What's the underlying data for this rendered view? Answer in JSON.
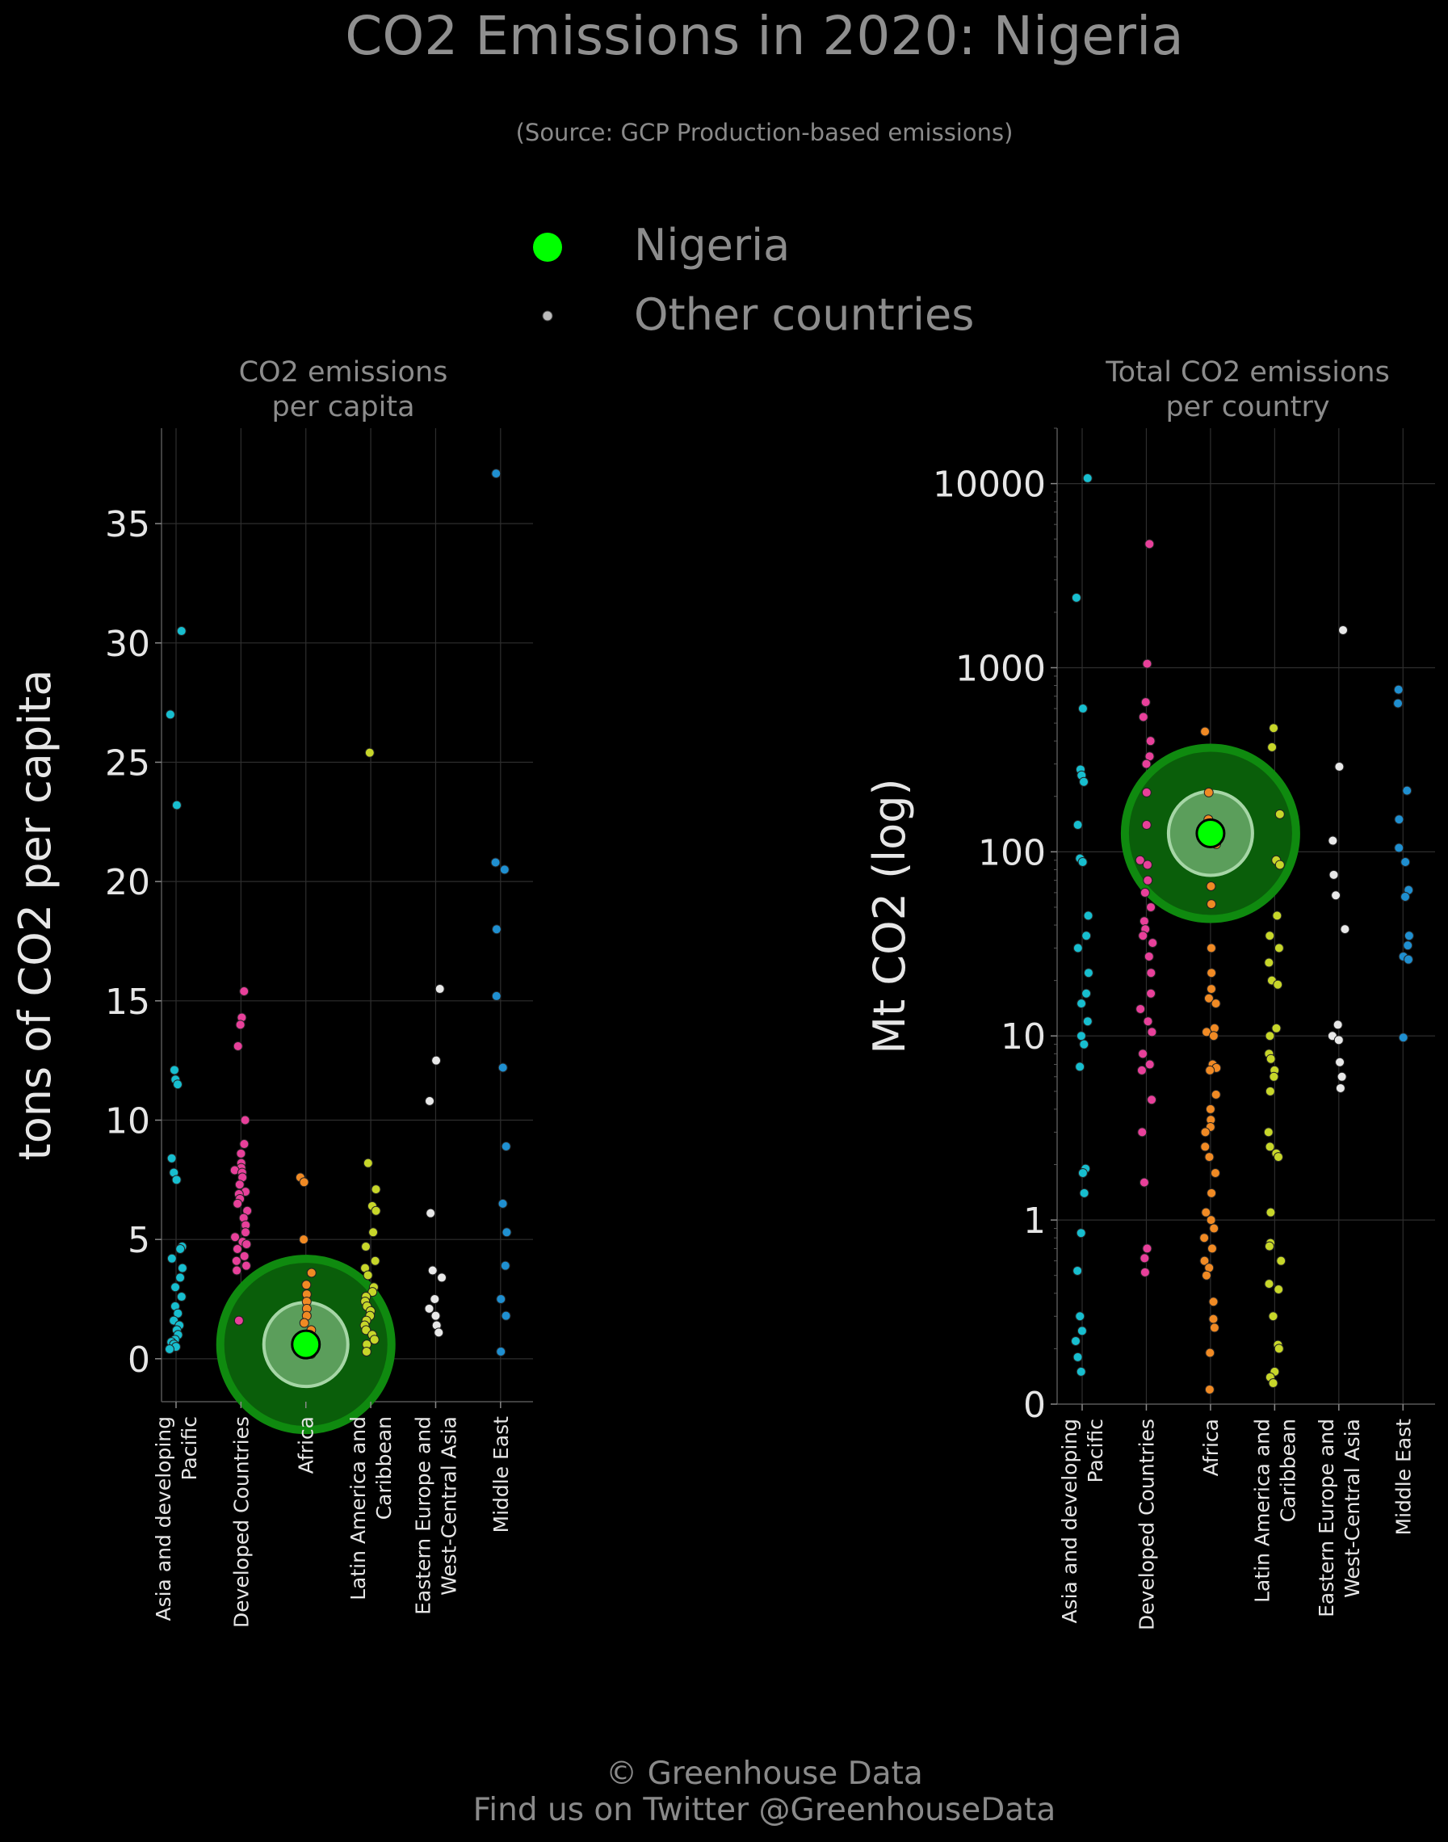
{
  "title": "CO2 Emissions in 2020: Nigeria",
  "subtitle": "(Source: GCP Production-based emissions)",
  "legend": {
    "highlight_label": "Nigeria",
    "other_label": "Other countries",
    "highlight_color": "#00ff00",
    "other_color": "#bbbbbb"
  },
  "footer": {
    "line1": "© Greenhouse Data",
    "line2": "Find us on Twitter @GreenhouseData"
  },
  "chart_data": [
    {
      "type": "scatter",
      "subtype": "strip",
      "title": "CO2 emissions per capita",
      "ylabel": "tons of CO2 per capita",
      "yscale": "linear",
      "ylim": [
        -1.8,
        39
      ],
      "yticks": [
        0,
        5,
        10,
        15,
        20,
        25,
        30,
        35
      ],
      "ytick_labels": [
        "0",
        "5",
        "10",
        "15",
        "20",
        "25",
        "30",
        "35"
      ],
      "grid": true,
      "categories": [
        {
          "label": "Asia and developing Pacific",
          "label_lines": [
            "Asia and developing",
            "Pacific"
          ],
          "color": "#17becf"
        },
        {
          "label": "Developed Countries",
          "label_lines": [
            "Developed Countries"
          ],
          "color": "#e7409a"
        },
        {
          "label": "Africa",
          "label_lines": [
            "Africa"
          ],
          "color": "#f08a24"
        },
        {
          "label": "Latin America and Caribbean",
          "label_lines": [
            "Latin America and",
            "Caribbean"
          ],
          "color": "#c7d62a"
        },
        {
          "label": "Eastern Europe and West-Central Asia",
          "label_lines": [
            "Eastern Europe and",
            "West-Central Asia"
          ],
          "color": "#e8e8e8"
        },
        {
          "label": "Middle East",
          "label_lines": [
            "Middle East"
          ],
          "color": "#1f8fd0"
        }
      ],
      "values": [
        [
          30.5,
          27.0,
          23.2,
          12.1,
          11.7,
          11.5,
          8.4,
          7.8,
          7.5,
          4.7,
          4.6,
          4.2,
          3.8,
          3.4,
          3.0,
          2.6,
          2.2,
          1.9,
          1.6,
          1.4,
          1.2,
          1.0,
          0.8,
          0.7,
          0.6,
          0.5,
          0.4
        ],
        [
          15.4,
          14.3,
          14.0,
          13.1,
          10.0,
          9.0,
          8.6,
          8.2,
          8.0,
          7.9,
          7.8,
          7.6,
          7.3,
          7.0,
          6.9,
          6.7,
          6.5,
          6.2,
          5.9,
          5.6,
          5.3,
          5.1,
          4.9,
          4.8,
          4.6,
          4.3,
          4.1,
          3.9,
          3.7,
          1.6
        ],
        [
          7.6,
          7.4,
          5.0,
          3.6,
          3.1,
          2.7,
          2.4,
          2.1,
          1.8,
          1.5,
          1.2,
          1.0,
          0.8,
          0.6,
          0.5,
          0.4,
          0.3,
          0.2,
          0.2
        ],
        [
          25.4,
          8.2,
          7.1,
          6.4,
          6.2,
          5.3,
          4.7,
          4.1,
          3.8,
          3.5,
          3.0,
          2.8,
          2.6,
          2.4,
          2.2,
          2.0,
          1.8,
          1.6,
          1.4,
          1.2,
          1.0,
          0.8,
          0.6,
          0.3
        ],
        [
          15.5,
          12.5,
          10.8,
          6.1,
          3.7,
          3.4,
          2.5,
          2.1,
          1.8,
          1.4,
          1.1
        ],
        [
          37.1,
          20.8,
          20.5,
          18.0,
          15.2,
          12.2,
          8.9,
          6.5,
          5.3,
          3.9,
          2.5,
          1.8,
          0.3
        ]
      ],
      "highlight": {
        "name": "Nigeria",
        "category": "Africa",
        "value": 0.6
      }
    },
    {
      "type": "scatter",
      "subtype": "strip",
      "title": "Total CO2 emissions per country",
      "ylabel": "Mt CO2 (log)",
      "yscale": "log",
      "ylim": [
        0.1,
        20000
      ],
      "yticks": [
        0.1,
        1,
        10,
        100,
        1000,
        10000
      ],
      "ytick_labels": [
        "0",
        "1",
        "10",
        "100",
        "1000",
        "10000"
      ],
      "grid": true,
      "categories": [
        {
          "label": "Asia and developing Pacific",
          "label_lines": [
            "Asia and developing",
            "Pacific"
          ],
          "color": "#17becf"
        },
        {
          "label": "Developed Countries",
          "label_lines": [
            "Developed Countries"
          ],
          "color": "#e7409a"
        },
        {
          "label": "Africa",
          "label_lines": [
            "Africa"
          ],
          "color": "#f08a24"
        },
        {
          "label": "Latin America and Caribbean",
          "label_lines": [
            "Latin America and",
            "Caribbean"
          ],
          "color": "#c7d62a"
        },
        {
          "label": "Eastern Europe and West-Central Asia",
          "label_lines": [
            "Eastern Europe and",
            "West-Central Asia"
          ],
          "color": "#e8e8e8"
        },
        {
          "label": "Middle East",
          "label_lines": [
            "Middle East"
          ],
          "color": "#1f8fd0"
        }
      ],
      "values": [
        [
          10700,
          2400,
          600,
          280,
          260,
          240,
          140,
          92,
          88,
          45,
          35,
          30,
          22,
          17,
          15,
          12,
          10,
          9,
          6.8,
          1.9,
          1.8,
          1.4,
          0.85,
          0.53,
          0.3,
          0.25,
          0.22,
          0.18,
          0.15
        ],
        [
          4700,
          1050,
          650,
          540,
          400,
          330,
          300,
          210,
          140,
          90,
          85,
          70,
          60,
          50,
          42,
          38,
          35,
          32,
          27,
          22,
          17,
          14,
          12,
          10.5,
          8,
          7,
          6.5,
          4.5,
          3,
          1.6,
          0.7,
          0.62,
          0.52
        ],
        [
          450,
          210,
          150,
          110,
          65,
          52,
          30,
          22,
          18,
          16,
          15,
          11,
          10.5,
          10,
          7,
          6.7,
          6.5,
          4.8,
          4,
          3.5,
          3.2,
          3,
          2.5,
          2.2,
          1.8,
          1.4,
          1.1,
          1,
          0.9,
          0.8,
          0.7,
          0.6,
          0.55,
          0.5,
          0.36,
          0.29,
          0.26,
          0.19,
          0.12
        ],
        [
          470,
          370,
          160,
          90,
          85,
          45,
          35,
          30,
          25,
          20,
          19,
          11,
          10,
          8,
          7.5,
          6.5,
          6,
          5,
          3,
          2.5,
          2.3,
          2.2,
          1.1,
          0.75,
          0.72,
          0.6,
          0.45,
          0.42,
          0.3,
          0.21,
          0.2,
          0.15,
          0.14,
          0.13
        ],
        [
          1600,
          290,
          115,
          75,
          58,
          38,
          11.5,
          10,
          9.5,
          7.2,
          6,
          5.2
        ],
        [
          760,
          640,
          215,
          150,
          105,
          88,
          62,
          57,
          35,
          31,
          27,
          26,
          9.8
        ]
      ],
      "highlight": {
        "name": "Nigeria",
        "category": "Africa",
        "value": 126
      }
    }
  ]
}
